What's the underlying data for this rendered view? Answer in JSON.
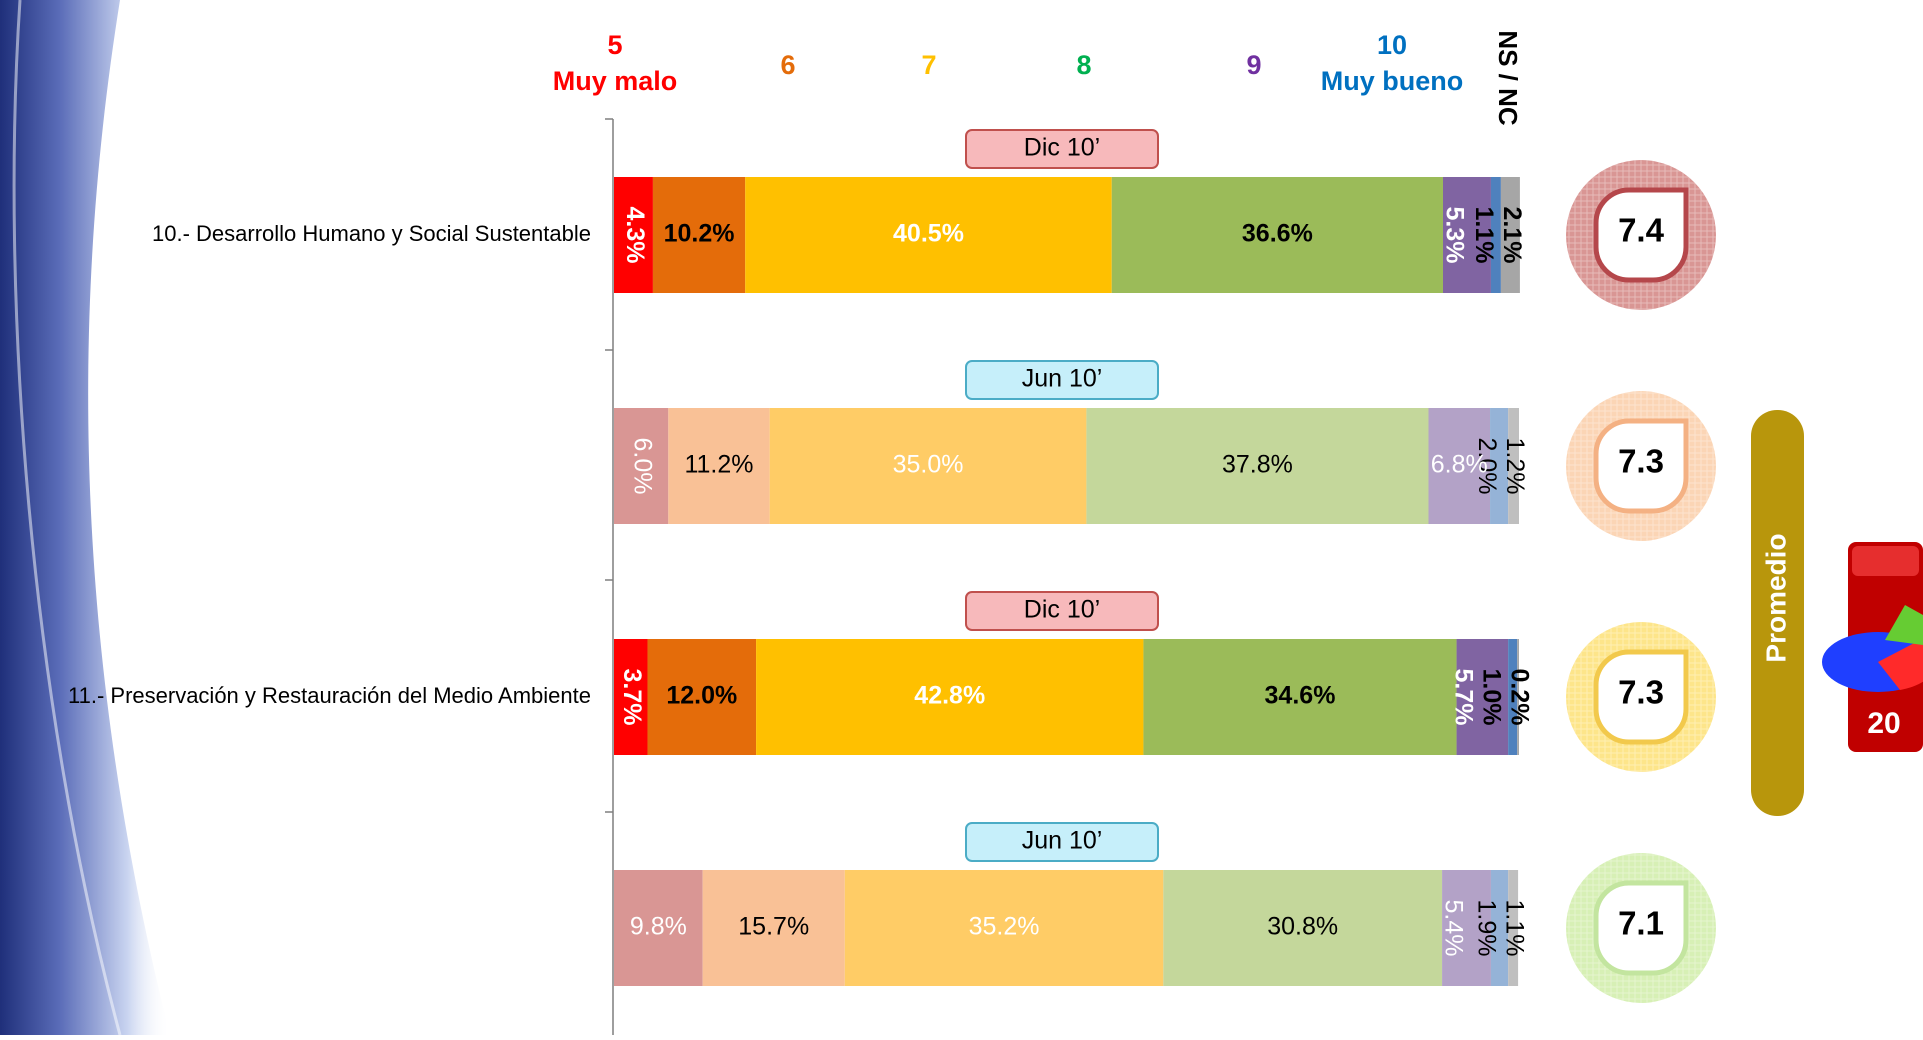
{
  "chart_data": {
    "type": "bar",
    "orientation": "horizontal",
    "stacked": true,
    "categories": [
      "10.- Desarrollo Humano y Social Sustentable",
      null,
      "11.- Preservación y Restauración del Medio Ambiente",
      null
    ],
    "periods": [
      "Dic 10’",
      "Jun 10’",
      "Dic 10’",
      "Jun 10’"
    ],
    "faded": [
      false,
      true,
      false,
      true
    ],
    "xlim": [
      0,
      100
    ],
    "series": [
      {
        "name": "5",
        "desc": "Muy malo",
        "color": "#ff0000",
        "faded_color": "#d99694",
        "legend_color": "#ff0000",
        "label_color": "#ffffff",
        "values": [
          4.3,
          6.0,
          3.7,
          9.8
        ],
        "value_labels": [
          "4.3%",
          "6.0%",
          "3.7%",
          "9.8%"
        ]
      },
      {
        "name": "6",
        "color": "#e46c0a",
        "faded_color": "#f9c196",
        "legend_color": "#e46c0a",
        "label_color": "#000000",
        "values": [
          10.2,
          11.2,
          12.0,
          15.7
        ],
        "value_labels": [
          "10.2%",
          "11.2%",
          "12.0%",
          "15.7%"
        ]
      },
      {
        "name": "7",
        "color": "#ffc000",
        "faded_color": "#ffcc66",
        "legend_color": "#ffc000",
        "label_color": "#ffffff",
        "values": [
          40.5,
          35.0,
          42.8,
          35.2
        ],
        "value_labels": [
          "40.5%",
          "35.0%",
          "42.8%",
          "35.2%"
        ]
      },
      {
        "name": "8",
        "color": "#9bbb59",
        "faded_color": "#c4d79b",
        "legend_color": "#00b050",
        "label_color": "#000000",
        "values": [
          36.6,
          37.8,
          34.6,
          30.8
        ],
        "value_labels": [
          "36.6%",
          "37.8%",
          "34.6%",
          "30.8%"
        ]
      },
      {
        "name": "9",
        "color": "#8064a2",
        "faded_color": "#b3a2c7",
        "legend_color": "#7030a0",
        "label_color": "#ffffff",
        "values": [
          5.3,
          6.8,
          5.7,
          5.4
        ],
        "value_labels": [
          "5.3%",
          "6.8%",
          "5.7%",
          "5.4%"
        ]
      },
      {
        "name": "10",
        "desc": "Muy bueno",
        "color": "#4f81bd",
        "faded_color": "#95b3d7",
        "legend_color": "#0070c0",
        "label_color": "#000000",
        "values": [
          1.1,
          2.0,
          1.0,
          1.9
        ],
        "value_labels": [
          "1.1%",
          "2.0%",
          "1.0%",
          "1.9%"
        ]
      },
      {
        "name": "NS / NC",
        "color": "#a6a6a6",
        "faded_color": "#bfbfbf",
        "legend_color": "#000000",
        "label_color": "#000000",
        "values": [
          2.1,
          1.2,
          0.2,
          1.1
        ],
        "value_labels": [
          "2.1%",
          "1.2%",
          "0.2%",
          "1.1%"
        ]
      }
    ],
    "promedio": {
      "label": "Promedio",
      "values": [
        7.4,
        7.3,
        7.3,
        7.1
      ],
      "colors": [
        "#d99694",
        "#fbd5b5",
        "#fde58a",
        "#d7f0b5"
      ],
      "border_colors": [
        "#b5474b",
        "#f4b183",
        "#f2c94c",
        "#c3e59f"
      ]
    },
    "icon_text": "20"
  }
}
